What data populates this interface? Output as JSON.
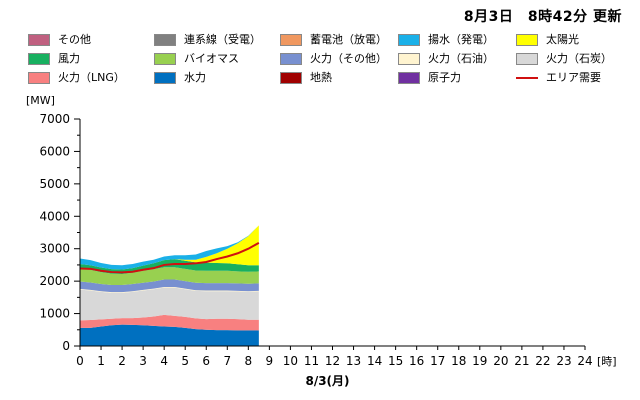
{
  "header": {
    "update_text": "8月3日　8時42分 更新"
  },
  "legend": [
    {
      "label": "その他",
      "color": "#c06080",
      "kind": "swatch"
    },
    {
      "label": "連系線（受電）",
      "color": "#808080",
      "kind": "swatch"
    },
    {
      "label": "蓄電池（放電）",
      "color": "#f09860",
      "kind": "swatch"
    },
    {
      "label": "揚水（発電）",
      "color": "#1ab0e8",
      "kind": "swatch"
    },
    {
      "label": "太陽光",
      "color": "#ffff00",
      "kind": "swatch"
    },
    {
      "label": "風力",
      "color": "#18b060",
      "kind": "swatch"
    },
    {
      "label": "バイオマス",
      "color": "#98d050",
      "kind": "swatch"
    },
    {
      "label": "火力（その他）",
      "color": "#7890d0",
      "kind": "swatch"
    },
    {
      "label": "火力（石油）",
      "color": "#fff4d0",
      "kind": "swatch"
    },
    {
      "label": "火力（石炭）",
      "color": "#d8d8d8",
      "kind": "swatch"
    },
    {
      "label": "火力（LNG）",
      "color": "#f88080",
      "kind": "swatch"
    },
    {
      "label": "水力",
      "color": "#0070c0",
      "kind": "swatch"
    },
    {
      "label": "地熱",
      "color": "#a00000",
      "kind": "swatch"
    },
    {
      "label": "原子力",
      "color": "#7030a0",
      "kind": "swatch"
    },
    {
      "label": "エリア需要",
      "color": "#d01010",
      "kind": "line"
    }
  ],
  "chart_data": {
    "type": "area",
    "stacked": true,
    "ylabel": "[MW]",
    "xlabel": "8/3(月)",
    "x_unit_label": "[時]",
    "ylim": [
      0,
      7000
    ],
    "xlim": [
      0,
      24
    ],
    "yticks": [
      0,
      1000,
      2000,
      3000,
      4000,
      5000,
      6000,
      7000
    ],
    "xticks": [
      0,
      1,
      2,
      3,
      4,
      5,
      6,
      7,
      8,
      9,
      10,
      11,
      12,
      13,
      14,
      15,
      16,
      17,
      18,
      19,
      20,
      21,
      22,
      23,
      24
    ],
    "x": [
      0,
      0.5,
      1,
      1.5,
      2,
      2.5,
      3,
      3.5,
      4,
      4.5,
      5,
      5.5,
      6,
      6.5,
      7,
      7.5,
      8,
      8.5
    ],
    "series": [
      {
        "name": "水力",
        "color": "#0070c0",
        "values": [
          560,
          560,
          600,
          640,
          660,
          650,
          640,
          620,
          600,
          590,
          560,
          520,
          500,
          490,
          490,
          480,
          480,
          480
        ]
      },
      {
        "name": "火力（LNG）",
        "color": "#f88080",
        "values": [
          230,
          240,
          220,
          200,
          200,
          210,
          240,
          290,
          360,
          340,
          340,
          330,
          330,
          350,
          350,
          350,
          330,
          330
        ]
      },
      {
        "name": "火力（石炭）",
        "color": "#d8d8d8",
        "values": [
          950,
          910,
          850,
          800,
          780,
          810,
          830,
          840,
          840,
          870,
          850,
          850,
          860,
          850,
          850,
          850,
          860,
          870
        ]
      },
      {
        "name": "火力（石油）",
        "color": "#fff4d0",
        "values": [
          20,
          20,
          20,
          20,
          20,
          20,
          20,
          20,
          20,
          20,
          20,
          20,
          20,
          20,
          20,
          20,
          20,
          20
        ]
      },
      {
        "name": "火力（その他）",
        "color": "#7890d0",
        "values": [
          230,
          230,
          220,
          220,
          220,
          220,
          220,
          220,
          230,
          230,
          230,
          230,
          230,
          230,
          230,
          230,
          230,
          230
        ]
      },
      {
        "name": "バイオマス",
        "color": "#98d050",
        "values": [
          400,
          390,
          370,
          350,
          340,
          350,
          370,
          380,
          380,
          380,
          380,
          380,
          380,
          380,
          380,
          370,
          370,
          370
        ]
      },
      {
        "name": "風力",
        "color": "#18b060",
        "values": [
          140,
          140,
          140,
          140,
          140,
          140,
          160,
          180,
          220,
          250,
          250,
          250,
          250,
          240,
          230,
          220,
          200,
          190
        ]
      },
      {
        "name": "太陽光",
        "color": "#ffff00",
        "values": [
          0,
          0,
          0,
          0,
          0,
          0,
          0,
          0,
          0,
          0,
          30,
          80,
          180,
          300,
          450,
          650,
          900,
          1230
        ]
      },
      {
        "name": "揚水（発電）",
        "color": "#1ab0e8",
        "values": [
          170,
          160,
          140,
          130,
          130,
          130,
          120,
          110,
          110,
          120,
          140,
          160,
          180,
          150,
          80,
          30,
          10,
          0
        ]
      }
    ],
    "demand": {
      "name": "エリア需要",
      "color": "#d01010",
      "values": [
        2390,
        2380,
        2320,
        2280,
        2270,
        2290,
        2350,
        2400,
        2500,
        2530,
        2530,
        2550,
        2590,
        2680,
        2760,
        2860,
        3000,
        3180
      ]
    }
  }
}
